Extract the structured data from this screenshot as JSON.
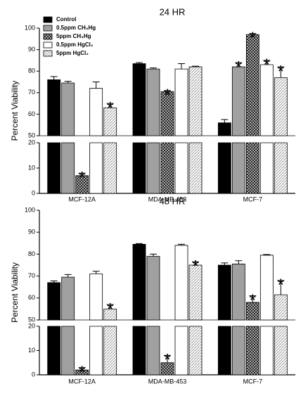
{
  "chart_data": [
    {
      "type": "bar",
      "title": "24 HR",
      "y_label": "Percent Viability",
      "categories": [
        "MCF-12A",
        "MDA-MB-453",
        "MCF-7"
      ],
      "ylim": [
        0,
        100
      ],
      "ybreak": [
        20,
        50
      ],
      "yticks": [
        0,
        10,
        20,
        50,
        60,
        70,
        80,
        90,
        100
      ],
      "legend": "upper left",
      "series": [
        {
          "name": "Control",
          "color": "#000000",
          "pattern": "solid",
          "values": [
            76,
            83.5,
            56
          ],
          "errors": [
            1.5,
            0.5,
            1.5
          ],
          "annotations": [
            null,
            null,
            null
          ]
        },
        {
          "name": "0.5ppm CH₃Hg",
          "color": "#a0a0a0",
          "pattern": "solid",
          "values": [
            74.5,
            81,
            82
          ],
          "errors": [
            0.8,
            0.5,
            2
          ],
          "annotations": [
            null,
            null,
            "*"
          ]
        },
        {
          "name": "5ppm CH₃Hg",
          "color": "#222222",
          "pattern": "crosshatch",
          "values": [
            7,
            70.5,
            97
          ],
          "errors": [
            1,
            0.5,
            0.5
          ],
          "annotations": [
            "*",
            "*",
            "*"
          ]
        },
        {
          "name": "0.5ppm HgCl₂",
          "color": "#ffffff",
          "pattern": "solid",
          "values": [
            72,
            81,
            83
          ],
          "errors": [
            3,
            2.5,
            2
          ],
          "annotations": [
            null,
            null,
            "*"
          ]
        },
        {
          "name": "5ppm HgCl₂",
          "color": "#999999",
          "pattern": "hatch",
          "values": [
            63,
            82,
            77
          ],
          "errors": [
            2,
            0.3,
            5
          ],
          "annotations": [
            "*",
            null,
            "*"
          ]
        }
      ]
    },
    {
      "type": "bar",
      "title": "48 HR",
      "y_label": "Percent Viability",
      "categories": [
        "MCF-12A",
        "MDA-MB-453",
        "MCF-7"
      ],
      "ylim": [
        0,
        100
      ],
      "ybreak": [
        20,
        50
      ],
      "yticks": [
        0,
        10,
        20,
        50,
        60,
        70,
        80,
        90,
        100
      ],
      "series": [
        {
          "color": "#000000",
          "pattern": "solid",
          "values": [
            67,
            84.5,
            75
          ],
          "errors": [
            0.8,
            0.3,
            1
          ],
          "annotations": [
            null,
            null,
            null
          ]
        },
        {
          "color": "#a0a0a0",
          "pattern": "solid",
          "values": [
            69.5,
            79,
            75.5
          ],
          "errors": [
            1.2,
            1,
            1.5
          ],
          "annotations": [
            null,
            null,
            null
          ]
        },
        {
          "color": "#222222",
          "pattern": "crosshatch",
          "values": [
            2,
            5,
            58
          ],
          "errors": [
            1,
            3,
            3
          ],
          "annotations": [
            "*",
            "*",
            "*"
          ]
        },
        {
          "color": "#ffffff",
          "pattern": "solid",
          "values": [
            71,
            84,
            79.5
          ],
          "errors": [
            1.2,
            0.5,
            0.3
          ],
          "annotations": [
            null,
            null,
            null
          ]
        },
        {
          "color": "#999999",
          "pattern": "hatch",
          "values": [
            55,
            75,
            61.5
          ],
          "errors": [
            2,
            1.5,
            6.5
          ],
          "annotations": [
            "*",
            "*",
            "*"
          ]
        }
      ]
    }
  ]
}
